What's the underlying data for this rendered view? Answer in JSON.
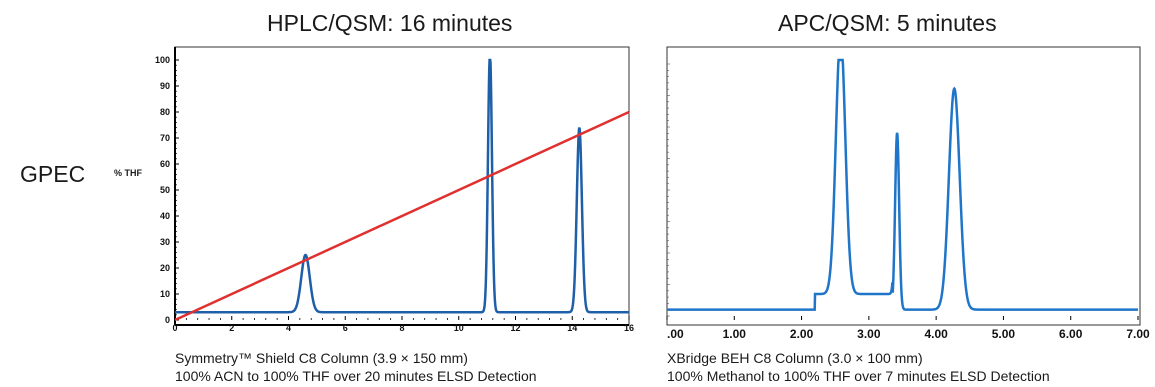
{
  "row_label": "GPEC",
  "chart_data": [
    {
      "type": "line",
      "title": "HPLC/QSM: 16 minutes",
      "ylabel": "% THF",
      "xlabel": "",
      "xlim": [
        0,
        16
      ],
      "ylim": [
        0,
        100
      ],
      "x_ticks": [
        "0",
        "2",
        "4",
        "6",
        "8",
        "10",
        "12",
        "14",
        "16"
      ],
      "y_ticks": [
        "0",
        "10",
        "20",
        "30",
        "40",
        "50",
        "60",
        "70",
        "80",
        "90",
        "100"
      ],
      "trace_color": "#1f5fa8",
      "gradient_color": "#e03030",
      "series": [
        {
          "kind": "chromatogram",
          "baseline": 3,
          "peaks": [
            {
              "x": 4.6,
              "height": 22,
              "width": 0.15
            },
            {
              "x": 11.1,
              "height": 100,
              "width": 0.07
            },
            {
              "x": 14.25,
              "height": 71,
              "width": 0.09
            }
          ]
        },
        {
          "kind": "gradient",
          "points": [
            [
              0,
              0
            ],
            [
              16,
              80
            ]
          ]
        }
      ],
      "caption": [
        "Symmetry™ Shield C8 Column (3.9 × 150 mm)",
        "100% ACN to 100% THF over 20 minutes ELSD Detection"
      ]
    },
    {
      "type": "line",
      "title": "APC/QSM: 5 minutes",
      "xlabel": "",
      "ylabel": "",
      "xlim": [
        0,
        7
      ],
      "ylim": [
        0,
        100
      ],
      "x_ticks": [
        ".00",
        "1.00",
        "2.00",
        "3.00",
        "4.00",
        "5.00",
        "6.00",
        "7.00"
      ],
      "trace_color": "#1f75c8",
      "series": [
        {
          "kind": "chromatogram",
          "baseline": 4,
          "plateau": [
            2.2,
            3.35,
            6
          ],
          "peaks": [
            {
              "x": 2.58,
              "height": 100,
              "width": 0.07
            },
            {
              "x": 3.42,
              "height": 68,
              "width": 0.03
            },
            {
              "x": 4.27,
              "height": 85,
              "width": 0.08
            }
          ]
        }
      ],
      "caption": [
        "XBridge BEH C8 Column (3.0 × 100 mm)",
        "100% Methanol to 100% THF over 7 minutes ELSD Detection"
      ]
    }
  ]
}
